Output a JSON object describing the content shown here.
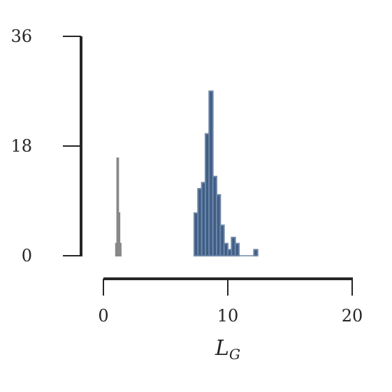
{
  "chart_data": {
    "type": "histogram",
    "xlabel": "L",
    "xlabel_subscript": "G",
    "xlim": [
      0,
      20
    ],
    "ylim": [
      0,
      36
    ],
    "x_ticks": [
      "0",
      "10",
      "20"
    ],
    "y_ticks": [
      "0",
      "18",
      "36"
    ],
    "grid": false,
    "legend": "none",
    "series": [
      {
        "color": "#1a1a1a",
        "edge_color": "#888888",
        "bins": [
          {
            "x0": 1.0,
            "x1": 1.1,
            "count": 2
          },
          {
            "x0": 1.1,
            "x1": 1.2,
            "count": 16
          },
          {
            "x0": 1.2,
            "x1": 1.3,
            "count": 7
          },
          {
            "x0": 1.3,
            "x1": 1.4,
            "count": 2
          }
        ]
      },
      {
        "color": "#2d4f7c",
        "edge_color": "#6f86a6",
        "bins": [
          {
            "x0": 7.3,
            "x1": 7.6,
            "count": 7
          },
          {
            "x0": 7.6,
            "x1": 7.9,
            "count": 11
          },
          {
            "x0": 7.9,
            "x1": 8.2,
            "count": 12
          },
          {
            "x0": 8.2,
            "x1": 8.5,
            "count": 20
          },
          {
            "x0": 8.5,
            "x1": 8.8,
            "count": 27
          },
          {
            "x0": 8.8,
            "x1": 9.1,
            "count": 13
          },
          {
            "x0": 9.1,
            "x1": 9.4,
            "count": 10
          },
          {
            "x0": 9.4,
            "x1": 9.7,
            "count": 5
          },
          {
            "x0": 9.7,
            "x1": 10.0,
            "count": 2
          },
          {
            "x0": 10.0,
            "x1": 10.3,
            "count": 1
          },
          {
            "x0": 10.3,
            "x1": 10.6,
            "count": 3
          },
          {
            "x0": 10.6,
            "x1": 10.9,
            "count": 2
          },
          {
            "x0": 10.9,
            "x1": 11.2,
            "count": 0
          },
          {
            "x0": 11.2,
            "x1": 11.5,
            "count": 0
          },
          {
            "x0": 11.5,
            "x1": 11.8,
            "count": 0
          },
          {
            "x0": 11.8,
            "x1": 12.1,
            "count": 0
          },
          {
            "x0": 12.1,
            "x1": 12.4,
            "count": 1
          }
        ]
      }
    ]
  }
}
